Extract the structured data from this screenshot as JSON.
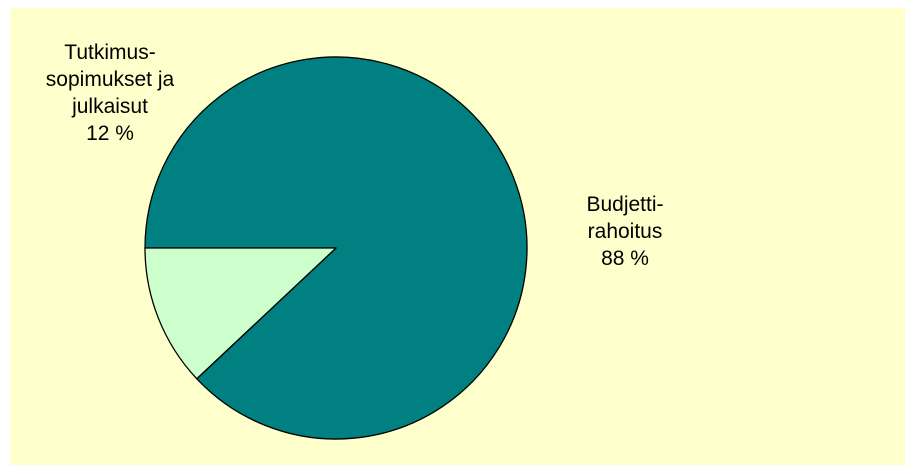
{
  "chart_data": {
    "type": "pie",
    "slices": [
      {
        "label_lines": [
          "Budjetti-",
          "rahoitus"
        ],
        "value": 88,
        "value_text": "88 %",
        "color": "#008080"
      },
      {
        "label_lines": [
          "Tutkimus-",
          "sopimukset ja",
          "julkaisut"
        ],
        "value": 12,
        "value_text": "12 %",
        "color": "#ccffcc"
      }
    ],
    "background_color": "#ffffcc",
    "edge_color": "#000000"
  }
}
